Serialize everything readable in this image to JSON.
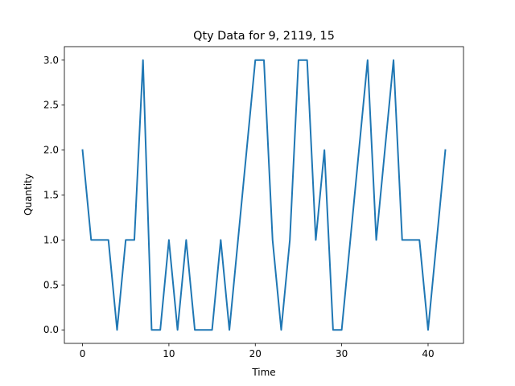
{
  "chart_data": {
    "type": "line",
    "title": "Qty Data for 9, 2119, 15",
    "xlabel": "Time",
    "ylabel": "Quantity",
    "xlim": [
      -2.1,
      44.1
    ],
    "ylim": [
      -0.15,
      3.15
    ],
    "x_ticks": [
      0,
      10,
      20,
      30,
      40
    ],
    "y_ticks": [
      0.0,
      0.5,
      1.0,
      1.5,
      2.0,
      2.5,
      3.0
    ],
    "x_tick_labels": [
      "0",
      "10",
      "20",
      "30",
      "40"
    ],
    "y_tick_labels": [
      "0.0",
      "0.5",
      "1.0",
      "1.5",
      "2.0",
      "2.5",
      "3.0"
    ],
    "grid": false,
    "legend": "none",
    "series": [
      {
        "color": "#1f77b4",
        "x": [
          0,
          1,
          2,
          3,
          4,
          5,
          6,
          7,
          8,
          9,
          10,
          11,
          12,
          13,
          14,
          15,
          16,
          17,
          18,
          19,
          20,
          21,
          22,
          23,
          24,
          25,
          26,
          27,
          28,
          29,
          30,
          31,
          32,
          33,
          34,
          35,
          36,
          37,
          38,
          39,
          40,
          41,
          42
        ],
        "y": [
          2,
          1,
          1,
          1,
          0,
          1,
          1,
          3,
          0,
          0,
          1,
          0,
          1,
          0,
          0,
          0,
          1,
          0,
          1,
          2,
          3,
          3,
          1,
          0,
          1,
          3,
          3,
          1,
          2,
          0,
          0,
          1,
          2,
          3,
          1,
          2,
          3,
          1,
          1,
          1,
          0,
          1,
          2
        ]
      }
    ]
  }
}
